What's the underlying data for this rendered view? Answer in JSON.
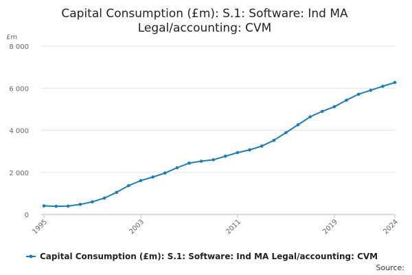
{
  "chart_data": {
    "type": "line",
    "title_lines": [
      "Capital Consumption (£m): S.1: Software: Ind MA",
      "Legal/accounting: CVM"
    ],
    "ylabel": "£m",
    "xlabel": "",
    "ylim": [
      0,
      8000
    ],
    "y_ticks": [
      {
        "value": 0,
        "label": "0"
      },
      {
        "value": 2000,
        "label": "2 000"
      },
      {
        "value": 4000,
        "label": "4 000"
      },
      {
        "value": 6000,
        "label": "6 000"
      },
      {
        "value": 8000,
        "label": "8 000"
      }
    ],
    "xlim": [
      1995,
      2024
    ],
    "x_ticks": [
      "1995",
      "2003",
      "2011",
      "2019",
      "2024"
    ],
    "grid": true,
    "series": [
      {
        "name": "Capital Consumption (£m): S.1: Software: Ind MA Legal/accounting: CVM",
        "color": "#1a7db5",
        "x": [
          1995,
          1996,
          1997,
          1998,
          1999,
          2000,
          2001,
          2002,
          2003,
          2004,
          2005,
          2006,
          2007,
          2008,
          2009,
          2010,
          2011,
          2012,
          2013,
          2014,
          2015,
          2016,
          2017,
          2018,
          2019,
          2020,
          2021,
          2022,
          2023,
          2024
        ],
        "values": [
          410,
          390,
          400,
          480,
          600,
          780,
          1050,
          1370,
          1610,
          1780,
          1970,
          2220,
          2440,
          2530,
          2600,
          2770,
          2940,
          3070,
          3250,
          3520,
          3890,
          4260,
          4640,
          4900,
          5120,
          5430,
          5710,
          5900,
          6090,
          6270
        ]
      }
    ],
    "legend": {
      "position": "bottom"
    },
    "source_label": "Source:"
  }
}
